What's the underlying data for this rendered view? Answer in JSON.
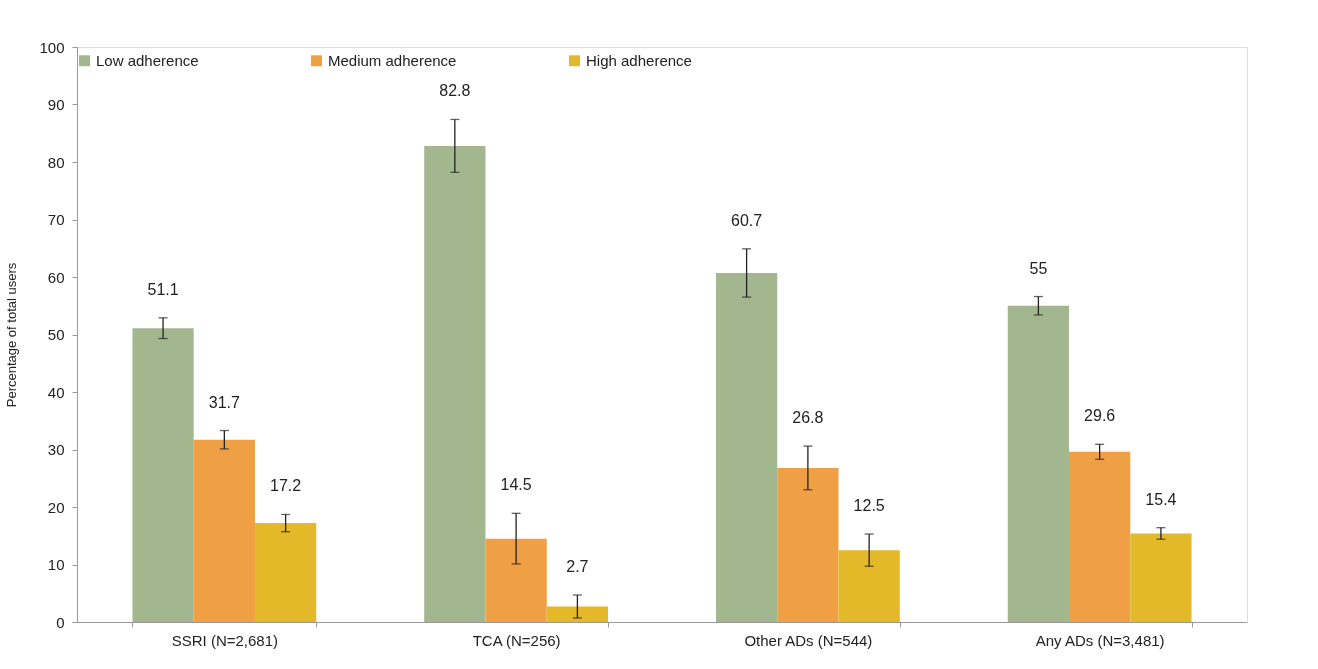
{
  "chart_data": {
    "type": "bar",
    "ylabel": "Percentage of total users",
    "categories": [
      "SSRI (N=2,681)",
      "TCA (N=256)",
      "Other ADs (N=544)",
      "Any ADs (N=3,481)"
    ],
    "series": [
      {
        "name": "Low adherence",
        "color": "#a3b78f",
        "values": [
          51.1,
          82.8,
          60.7,
          55
        ],
        "errors": [
          1.8,
          4.6,
          4.2,
          1.6
        ]
      },
      {
        "name": "Medium adherence",
        "color": "#f0a044",
        "values": [
          31.7,
          14.5,
          26.8,
          29.6
        ],
        "errors": [
          1.6,
          4.4,
          3.8,
          1.3
        ]
      },
      {
        "name": "High adherence",
        "color": "#e3b92a",
        "values": [
          17.2,
          2.7,
          12.5,
          15.4
        ],
        "errors": [
          1.5,
          2.0,
          2.8,
          1.0
        ]
      }
    ],
    "ylim": [
      0,
      100
    ],
    "yticks": [
      0,
      10,
      20,
      30,
      40,
      50,
      60,
      70,
      80,
      90,
      100
    ],
    "data_labels": true,
    "legend": "top",
    "grid": false
  }
}
